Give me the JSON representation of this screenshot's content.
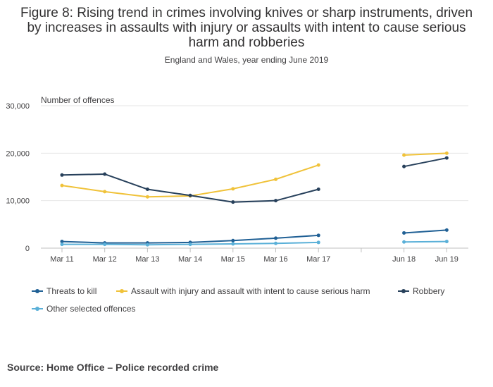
{
  "title": "Figure 8: Rising trend in crimes involving knives or sharp instruments, driven by increases in assaults with injury or assaults with intent to cause serious harm and robberies",
  "subtitle": "England and Wales, year ending June 2019",
  "source": "Source: Home Office – Police recorded crime",
  "chart_data": {
    "type": "line",
    "ylabel": "Number of offences",
    "xlabel": "",
    "ylim": [
      0,
      30000
    ],
    "yticks": [
      "0",
      "10,000",
      "20,000",
      "30,000"
    ],
    "ytick_values": [
      0,
      10000,
      20000,
      30000
    ],
    "categories": [
      "Mar 11",
      "Mar 12",
      "Mar 13",
      "Mar 14",
      "Mar 15",
      "Mar 16",
      "Mar 17",
      "",
      "Jun 18",
      "Jun 19"
    ],
    "grid": true,
    "legend_position": "bottom",
    "series": [
      {
        "name": "Threats to kill",
        "color": "#206095",
        "values": [
          1400,
          1100,
          1100,
          1200,
          1600,
          2100,
          2700,
          null,
          3200,
          3800
        ]
      },
      {
        "name": "Assault with injury and assault with intent to cause serious harm",
        "color": "#f0c239",
        "values": [
          13200,
          11900,
          10800,
          11000,
          12500,
          14500,
          17500,
          null,
          19600,
          20000
        ]
      },
      {
        "name": "Robbery",
        "color": "#27405b",
        "values": [
          15400,
          15600,
          12400,
          11100,
          9700,
          10000,
          12400,
          null,
          17200,
          19000
        ]
      },
      {
        "name": "Other selected offences",
        "color": "#5ab0d8",
        "values": [
          800,
          800,
          700,
          800,
          900,
          1000,
          1200,
          null,
          1300,
          1400
        ]
      }
    ]
  }
}
